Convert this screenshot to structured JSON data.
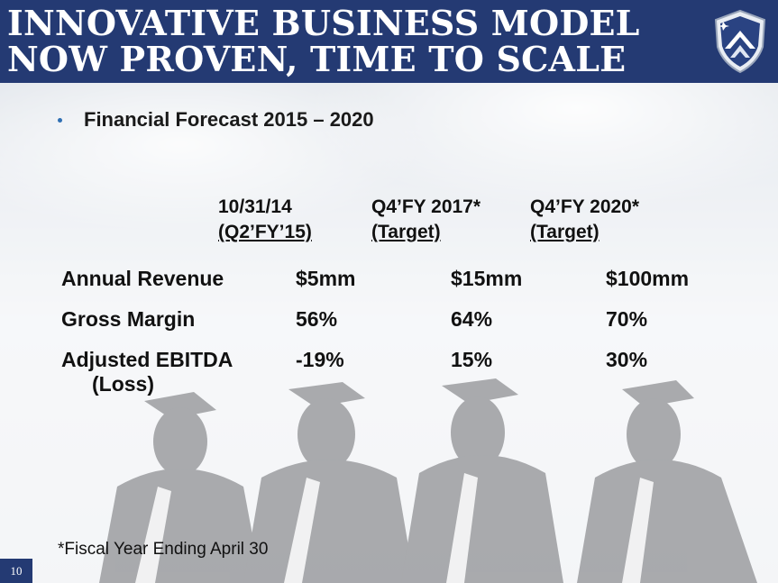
{
  "header": {
    "title_line1": "INNOVATIVE BUSINESS MODEL",
    "title_line2": "NOW PROVEN, TIME TO SCALE"
  },
  "bullet": "Financial Forecast 2015 – 2020",
  "table": {
    "columns": [
      {
        "line1": "10/31/14",
        "line2": "(Q2’FY’15)"
      },
      {
        "line1": "Q4’FY 2017*",
        "line2": "(Target)"
      },
      {
        "line1": "Q4’FY 2020*",
        "line2": "(Target)"
      }
    ],
    "rows": [
      {
        "label": "Annual Revenue",
        "label_cont": "",
        "values": [
          "$5mm",
          "$15mm",
          "$100mm"
        ]
      },
      {
        "label": "Gross Margin",
        "label_cont": "",
        "values": [
          "56%",
          "64%",
          "70%"
        ]
      },
      {
        "label": "Adjusted EBITDA",
        "label_cont": "(Loss)",
        "values": [
          "-19%",
          "15%",
          "30%"
        ]
      }
    ]
  },
  "footnote": "*Fiscal Year Ending April 30",
  "page_number": "10",
  "colors": {
    "header_bg": "#243a73",
    "bullet": "#2f6fb3",
    "text": "#111111"
  },
  "icons": {
    "logo": "shield-chevron-logo-icon"
  }
}
